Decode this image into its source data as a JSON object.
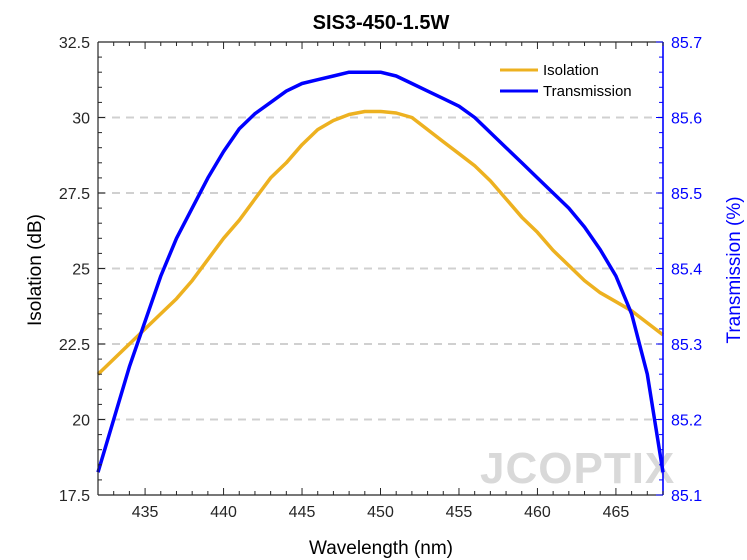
{
  "chart_data": {
    "type": "line",
    "title": "SIS3-450-1.5W",
    "xlabel": "Wavelength (nm)",
    "ylabel_left": "Isolation (dB)",
    "ylabel_right": "Transmission (%)",
    "xlim": [
      432,
      468
    ],
    "ylim_left": [
      17.5,
      32.5
    ],
    "ylim_right": [
      85.1,
      85.7
    ],
    "x_ticks": [
      "435",
      "440",
      "445",
      "450",
      "455",
      "460",
      "465"
    ],
    "y_left_ticks": [
      "17.5",
      "20",
      "22.5",
      "25",
      "27.5",
      "30",
      "32.5"
    ],
    "y_right_ticks": [
      "85.1",
      "85.2",
      "85.3",
      "85.4",
      "85.5",
      "85.6",
      "85.7"
    ],
    "grid": "horizontal dashed",
    "legend_position": "top-right",
    "series": [
      {
        "name": "Isolation",
        "axis": "left",
        "color": "#EDB120",
        "x": [
          432,
          433,
          434,
          435,
          436,
          437,
          438,
          439,
          440,
          441,
          442,
          443,
          444,
          445,
          446,
          447,
          448,
          449,
          450,
          451,
          452,
          453,
          454,
          455,
          456,
          457,
          458,
          459,
          460,
          461,
          462,
          463,
          464,
          465,
          466,
          467,
          468
        ],
        "y": [
          21.5,
          22.0,
          22.5,
          23.0,
          23.5,
          24.0,
          24.6,
          25.3,
          26.0,
          26.6,
          27.3,
          28.0,
          28.5,
          29.1,
          29.6,
          29.9,
          30.1,
          30.2,
          30.2,
          30.15,
          30.0,
          29.6,
          29.2,
          28.8,
          28.4,
          27.9,
          27.3,
          26.7,
          26.2,
          25.6,
          25.1,
          24.6,
          24.2,
          23.9,
          23.6,
          23.2,
          22.8
        ]
      },
      {
        "name": "Transmission",
        "axis": "right",
        "color": "#0000FF",
        "x": [
          432,
          433,
          434,
          435,
          436,
          437,
          438,
          439,
          440,
          441,
          442,
          443,
          444,
          445,
          446,
          447,
          448,
          449,
          450,
          451,
          452,
          453,
          454,
          455,
          456,
          457,
          458,
          459,
          460,
          461,
          462,
          463,
          464,
          465,
          466,
          467,
          468
        ],
        "y": [
          85.13,
          85.2,
          85.27,
          85.33,
          85.39,
          85.44,
          85.48,
          85.52,
          85.555,
          85.585,
          85.605,
          85.62,
          85.635,
          85.645,
          85.65,
          85.655,
          85.66,
          85.66,
          85.66,
          85.655,
          85.645,
          85.635,
          85.625,
          85.615,
          85.6,
          85.58,
          85.56,
          85.54,
          85.52,
          85.5,
          85.48,
          85.455,
          85.425,
          85.39,
          85.34,
          85.26,
          85.13
        ]
      }
    ]
  },
  "watermark": "JCOPTIX"
}
